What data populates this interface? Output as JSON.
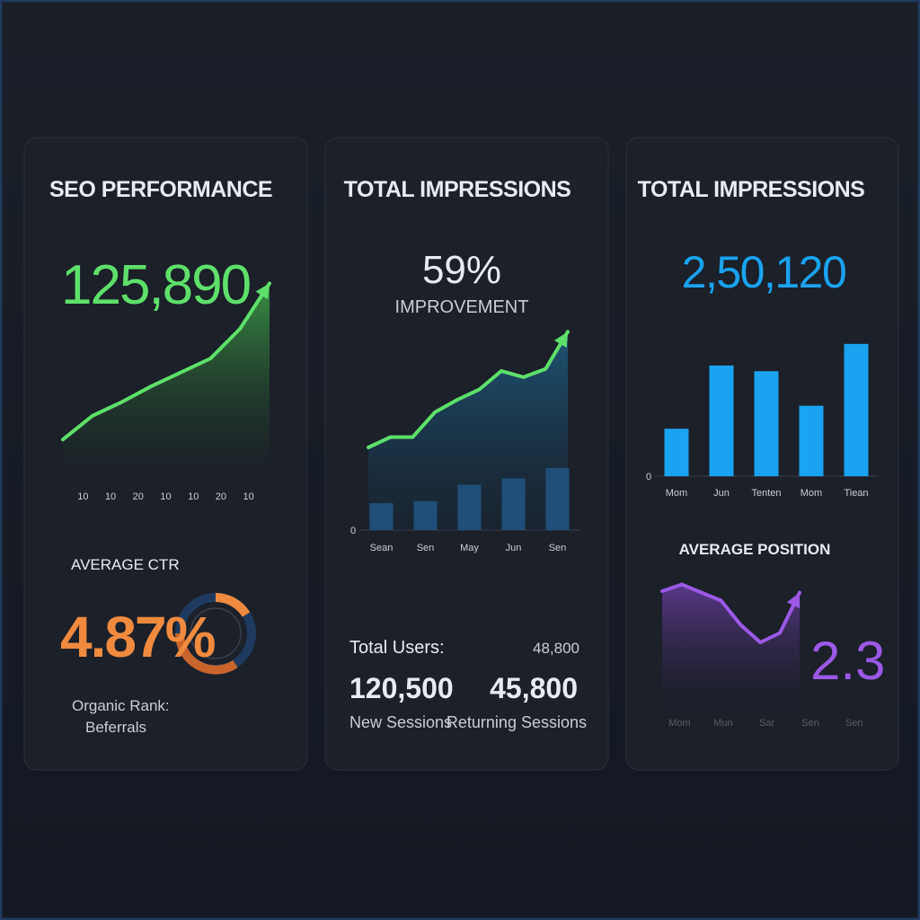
{
  "cards": [
    {
      "title": "SEO PERFORMANCE",
      "value": "125,890",
      "chart": {
        "type": "line",
        "color": "#5ee06a",
        "values": [
          14,
          26,
          33,
          41,
          48,
          55,
          70,
          93
        ],
        "ylim": [
          0,
          100
        ],
        "x_labels": [
          "10",
          "10",
          "20",
          "10",
          "10",
          "20",
          "10"
        ]
      },
      "ctr": {
        "label": "AVERAGE CTR",
        "value": "4.87%",
        "caption": [
          "Organic Rank:",
          "Beferrals"
        ]
      }
    },
    {
      "title": "TOTAL IMPRESSIONS",
      "value": "59%",
      "subtitle": "IMPROVEMENT",
      "chart": {
        "type": "combo",
        "line_color": "#5ee06a",
        "bar_color": "#1f4f78",
        "line_values": [
          40,
          45,
          45,
          57,
          63,
          68,
          77,
          74,
          78,
          96
        ],
        "bar_values": [
          13,
          14,
          22,
          25,
          30
        ],
        "ylim": [
          0,
          100
        ],
        "yticks": [
          0
        ],
        "categories": [
          "Sean",
          "Sen",
          "May",
          "Jun",
          "Sen"
        ]
      },
      "stats": {
        "label": "Total Users:",
        "label_value": "48,800",
        "items": [
          {
            "value": "120,500",
            "label": "New Sessions"
          },
          {
            "value": "45,800",
            "label": "Returning Sessions"
          }
        ]
      }
    },
    {
      "title": "TOTAL IMPRESSIONS",
      "value": "2,50,120",
      "chart": {
        "type": "bar",
        "color": "#1aa3f0",
        "values": [
          33,
          77,
          73,
          49,
          92
        ],
        "ylim": [
          0,
          100
        ],
        "yticks": [
          0
        ],
        "categories": [
          "Mom",
          "Jun",
          "Tenten",
          "Mom",
          "Tiean"
        ]
      },
      "position": {
        "label": "AVERAGE POSITION",
        "value": "2.3",
        "chart": {
          "type": "line",
          "color": "#9b59e6",
          "values": [
            88,
            93,
            87,
            81,
            63,
            50,
            57,
            87
          ],
          "ylim": [
            0,
            100
          ],
          "x_labels": [
            "Mom",
            "Mun",
            "Sar",
            "Sen",
            "Sen"
          ]
        }
      }
    }
  ]
}
